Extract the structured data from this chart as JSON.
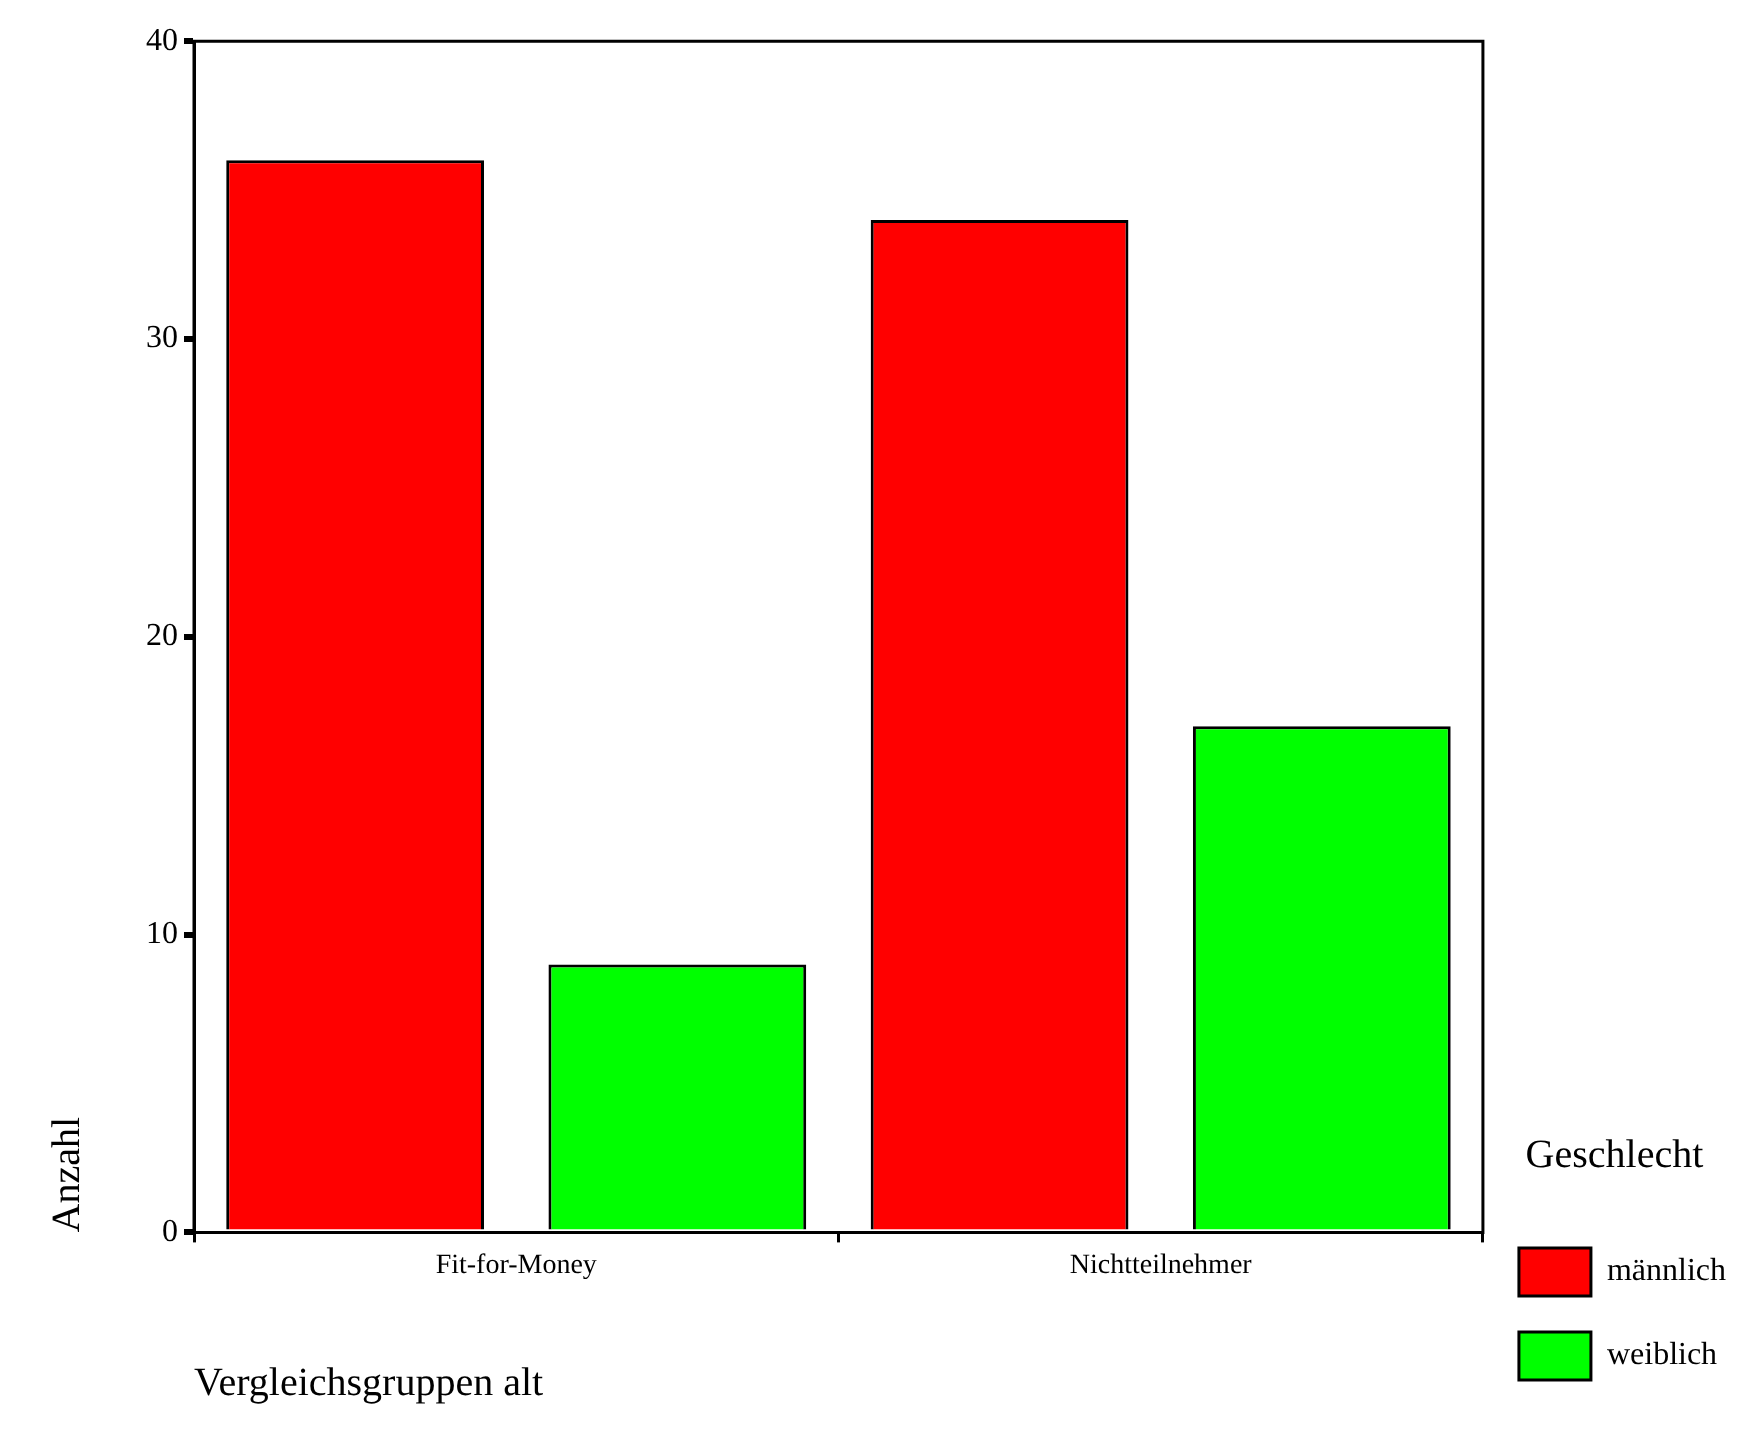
{
  "chart_data": {
    "type": "bar",
    "xlabel": "Vergleichsgruppen alt",
    "ylabel": "Anzahl",
    "legend_title": "Geschlecht",
    "categories": [
      "Fit-for-Money",
      "Nichtteilnehmer"
    ],
    "series": [
      {
        "name": "männlich",
        "color": "#ff0000",
        "values": [
          36,
          34
        ]
      },
      {
        "name": "weiblich",
        "color": "#00ff00",
        "values": [
          9,
          17
        ]
      }
    ],
    "ylim": [
      0,
      40
    ],
    "yticks": [
      0,
      10,
      20,
      30,
      40
    ],
    "grid": false,
    "legend": "right"
  }
}
